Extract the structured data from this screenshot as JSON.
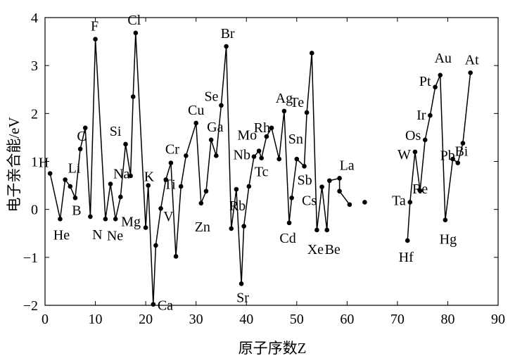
{
  "chart_data": {
    "type": "line",
    "xlabel": "原子序数Z",
    "ylabel": "电子亲合能/eV",
    "xlim": [
      0,
      90
    ],
    "ylim": [
      -2,
      4
    ],
    "x_ticks": [
      0,
      10,
      20,
      30,
      40,
      50,
      60,
      70,
      80,
      90
    ],
    "y_ticks": [
      -2,
      -1,
      0,
      1,
      2,
      3,
      4
    ],
    "grid": false,
    "color": "#000000",
    "segments": [
      [
        {
          "x": 1,
          "y": 0.75
        },
        {
          "x": 3,
          "y": -0.2
        },
        {
          "x": 4,
          "y": 0.62
        },
        {
          "x": 5,
          "y": 0.48
        },
        {
          "x": 6,
          "y": 0.24
        },
        {
          "x": 7,
          "y": 1.26
        },
        {
          "x": 8,
          "y": 1.7
        },
        {
          "x": 9,
          "y": -0.15
        },
        {
          "x": 10,
          "y": 3.55
        },
        {
          "x": 12,
          "y": -0.2
        },
        {
          "x": 13,
          "y": 0.53
        },
        {
          "x": 14,
          "y": -0.2
        },
        {
          "x": 15,
          "y": 0.26
        },
        {
          "x": 16,
          "y": 1.36
        },
        {
          "x": 17,
          "y": 0.7
        },
        {
          "x": 17.5,
          "y": 2.35
        },
        {
          "x": 18,
          "y": 3.68
        },
        {
          "x": 20,
          "y": -0.38
        },
        {
          "x": 20.5,
          "y": 0.5
        },
        {
          "x": 21.5,
          "y": -1.98
        },
        {
          "x": 22,
          "y": -0.75
        },
        {
          "x": 23,
          "y": 0.02
        },
        {
          "x": 24,
          "y": 0.62
        },
        {
          "x": 25,
          "y": 0.97
        },
        {
          "x": 26,
          "y": -0.98
        },
        {
          "x": 27,
          "y": 0.48
        },
        {
          "x": 28,
          "y": 1.12
        },
        {
          "x": 30,
          "y": 1.8
        },
        {
          "x": 31,
          "y": 0.13
        },
        {
          "x": 32,
          "y": 0.38
        },
        {
          "x": 33,
          "y": 1.45
        },
        {
          "x": 34,
          "y": 1.12
        },
        {
          "x": 35,
          "y": 2.17
        },
        {
          "x": 36,
          "y": 3.4
        },
        {
          "x": 37,
          "y": -0.4
        },
        {
          "x": 38,
          "y": 0.42
        },
        {
          "x": 39,
          "y": -1.55
        },
        {
          "x": 39.5,
          "y": -0.35
        },
        {
          "x": 40.5,
          "y": 0.48
        },
        {
          "x": 41.5,
          "y": 1.1
        },
        {
          "x": 42.5,
          "y": 1.22
        },
        {
          "x": 43,
          "y": 1.07
        },
        {
          "x": 44,
          "y": 1.52
        },
        {
          "x": 45,
          "y": 1.7
        },
        {
          "x": 46.5,
          "y": 1.05
        },
        {
          "x": 47.5,
          "y": 2.05
        },
        {
          "x": 48.5,
          "y": -0.28
        },
        {
          "x": 49,
          "y": 0.24
        },
        {
          "x": 50,
          "y": 1.05
        },
        {
          "x": 51.5,
          "y": 0.9
        },
        {
          "x": 52,
          "y": 2.02
        },
        {
          "x": 53,
          "y": 3.26
        },
        {
          "x": 54,
          "y": -0.43
        },
        {
          "x": 55,
          "y": 0.47
        },
        {
          "x": 56,
          "y": -0.43
        },
        {
          "x": 56.5,
          "y": 0.6
        },
        {
          "x": 58.5,
          "y": 0.65
        },
        {
          "x": 58.5,
          "y": 0.38
        },
        {
          "x": 60.5,
          "y": 0.1
        }
      ],
      [
        {
          "x": 63.5,
          "y": 0.15
        }
      ],
      [
        {
          "x": 72,
          "y": -0.65
        },
        {
          "x": 72.5,
          "y": 0.15
        },
        {
          "x": 73.5,
          "y": 1.2
        },
        {
          "x": 74.5,
          "y": 0.39
        },
        {
          "x": 75.5,
          "y": 1.45
        },
        {
          "x": 76.5,
          "y": 1.96
        },
        {
          "x": 77.5,
          "y": 2.55
        },
        {
          "x": 78.5,
          "y": 2.8
        },
        {
          "x": 79.5,
          "y": -0.22
        },
        {
          "x": 81,
          "y": 1.05
        },
        {
          "x": 82,
          "y": 0.97
        },
        {
          "x": 83,
          "y": 1.38
        },
        {
          "x": 84.5,
          "y": 2.85
        }
      ]
    ],
    "labels": [
      {
        "text": "H",
        "x": 1,
        "y": 0.75
      },
      {
        "text": "He",
        "x": 3,
        "y": -0.2
      },
      {
        "text": "Li",
        "x": 4,
        "y": 0.62
      },
      {
        "text": "B",
        "x": 6,
        "y": 0.24
      },
      {
        "text": "C",
        "x": 7,
        "y": 1.26
      },
      {
        "text": "N",
        "x": 9,
        "y": -0.15
      },
      {
        "text": "F",
        "x": 10,
        "y": 3.55
      },
      {
        "text": "Ne",
        "x": 12,
        "y": -0.2
      },
      {
        "text": "Na",
        "x": 13,
        "y": 0.53
      },
      {
        "text": "Mg",
        "x": 14,
        "y": -0.2
      },
      {
        "text": "Si",
        "x": 16,
        "y": 1.36
      },
      {
        "text": "Cl",
        "x": 18,
        "y": 3.68
      },
      {
        "text": "K",
        "x": 20.5,
        "y": 0.5
      },
      {
        "text": "Ca",
        "x": 21.5,
        "y": -1.98
      },
      {
        "text": "V",
        "x": 22,
        "y": -0.75
      },
      {
        "text": "Ti",
        "x": 23,
        "y": 0.02
      },
      {
        "text": "Cr",
        "x": 25,
        "y": 0.97
      },
      {
        "text": "Cu",
        "x": 30,
        "y": 1.8
      },
      {
        "text": "Zn",
        "x": 31,
        "y": 0.13
      },
      {
        "text": "Ga",
        "x": 33,
        "y": 1.45
      },
      {
        "text": "Se",
        "x": 35,
        "y": 2.17
      },
      {
        "text": "Br",
        "x": 36,
        "y": 3.4
      },
      {
        "text": "Rb",
        "x": 37,
        "y": -0.4
      },
      {
        "text": "Sr",
        "x": 39,
        "y": -1.55
      },
      {
        "text": "Nb",
        "x": 41.5,
        "y": 1.1
      },
      {
        "text": "Mo",
        "x": 42.5,
        "y": 1.22
      },
      {
        "text": "Tc",
        "x": 43,
        "y": 1.07
      },
      {
        "text": "Rh",
        "x": 45,
        "y": 1.7
      },
      {
        "text": "Ag",
        "x": 47.5,
        "y": 2.05
      },
      {
        "text": "Te",
        "x": 52,
        "y": 2.02
      },
      {
        "text": "Cd",
        "x": 48.5,
        "y": -0.28
      },
      {
        "text": "Sn",
        "x": 50,
        "y": 1.05
      },
      {
        "text": "Sb",
        "x": 51.5,
        "y": 0.9
      },
      {
        "text": "Cs",
        "x": 55,
        "y": 0.47
      },
      {
        "text": "Xe",
        "x": 54,
        "y": -0.43
      },
      {
        "text": "Be",
        "x": 56,
        "y": -0.43
      },
      {
        "text": "La",
        "x": 58.5,
        "y": 0.65
      },
      {
        "text": "W",
        "x": 73.5,
        "y": 1.2
      },
      {
        "text": "Os",
        "x": 75.5,
        "y": 1.45
      },
      {
        "text": "Ta",
        "x": 72.5,
        "y": 0.15
      },
      {
        "text": "Re",
        "x": 74.5,
        "y": 0.39
      },
      {
        "text": "Hf",
        "x": 72,
        "y": -0.65
      },
      {
        "text": "Ir",
        "x": 76.5,
        "y": 1.96
      },
      {
        "text": "Pt",
        "x": 77.5,
        "y": 2.55
      },
      {
        "text": "Au",
        "x": 78.5,
        "y": 2.8
      },
      {
        "text": "Hg",
        "x": 79.5,
        "y": -0.22
      },
      {
        "text": "Pb",
        "x": 82,
        "y": 0.97
      },
      {
        "text": "Bi",
        "x": 83,
        "y": 1.38
      },
      {
        "text": "At",
        "x": 84.5,
        "y": 2.85
      }
    ]
  }
}
